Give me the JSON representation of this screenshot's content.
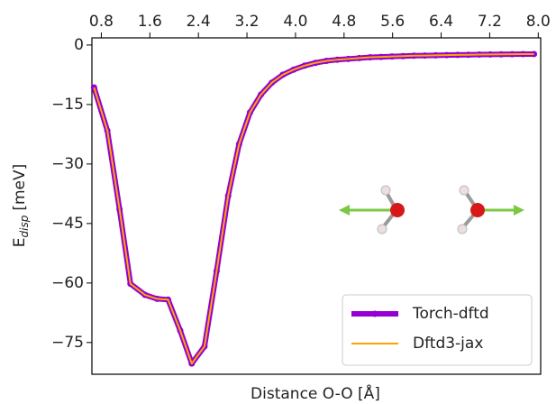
{
  "chart_data": {
    "type": "line",
    "xlabel": "Distance O-O [Å]",
    "ylabel_main": "E",
    "ylabel_sub": "disp",
    "ylabel_unit": "[meV]",
    "x": [
      0.68,
      0.9,
      1.1,
      1.28,
      1.52,
      1.72,
      1.9,
      2.1,
      2.29,
      2.5,
      2.7,
      2.89,
      3.07,
      3.25,
      3.43,
      3.61,
      3.79,
      3.97,
      4.15,
      4.33,
      4.51,
      4.69,
      4.87,
      5.05,
      5.23,
      5.41,
      5.59,
      5.77,
      5.95,
      6.13,
      6.31,
      6.49,
      6.67,
      6.85,
      7.03,
      7.21,
      7.39,
      7.57,
      7.75,
      7.93
    ],
    "series": [
      {
        "name": "Torch-dftd",
        "color": "#9400d3",
        "markers": true,
        "values": [
          -10.7,
          -21.6,
          -41.4,
          -60.2,
          -63,
          -64,
          -64.2,
          -72,
          -80.3,
          -76,
          -57,
          -38,
          -25,
          -17,
          -12.5,
          -9.5,
          -7.5,
          -6.2,
          -5.2,
          -4.5,
          -4,
          -3.7,
          -3.5,
          -3.3,
          -3.1,
          -3,
          -2.9,
          -2.8,
          -2.7,
          -2.65,
          -2.6,
          -2.55,
          -2.5,
          -2.45,
          -2.4,
          -2.38,
          -2.35,
          -2.32,
          -2.3,
          -2.28
        ]
      },
      {
        "name": "Dftd3-jax",
        "color": "#ffa500",
        "markers": false,
        "values": [
          -10.7,
          -21.6,
          -41.4,
          -60.2,
          -63,
          -64,
          -64.2,
          -72,
          -80.3,
          -76,
          -57,
          -38,
          -25,
          -17,
          -12.5,
          -9.5,
          -7.5,
          -6.2,
          -5.2,
          -4.5,
          -4,
          -3.7,
          -3.5,
          -3.3,
          -3.1,
          -3,
          -2.9,
          -2.8,
          -2.7,
          -2.65,
          -2.6,
          -2.55,
          -2.5,
          -2.45,
          -2.4,
          -2.38,
          -2.35,
          -2.32,
          -2.3,
          -2.28
        ]
      }
    ],
    "xlim": [
      0.645,
      8.04
    ],
    "xticks": [
      0.8,
      1.6,
      2.4,
      3.2,
      {
        "value": 4.0,
        "label": "4.0"
      },
      4.8,
      5.6,
      6.4,
      7.2,
      {
        "value": 8.0,
        "label": "8.0"
      }
    ],
    "xaxis_position": "top",
    "ylim": [
      -83,
      1.8
    ],
    "yticks": [
      {
        "value": 0,
        "label": "0"
      },
      {
        "value": -15,
        "label": "−15"
      },
      {
        "value": -30,
        "label": "−30"
      },
      {
        "value": -45,
        "label": "−45"
      },
      {
        "value": -60,
        "label": "−60"
      },
      {
        "value": -75,
        "label": "−75"
      }
    ],
    "grid": false,
    "legend": "lower right"
  }
}
